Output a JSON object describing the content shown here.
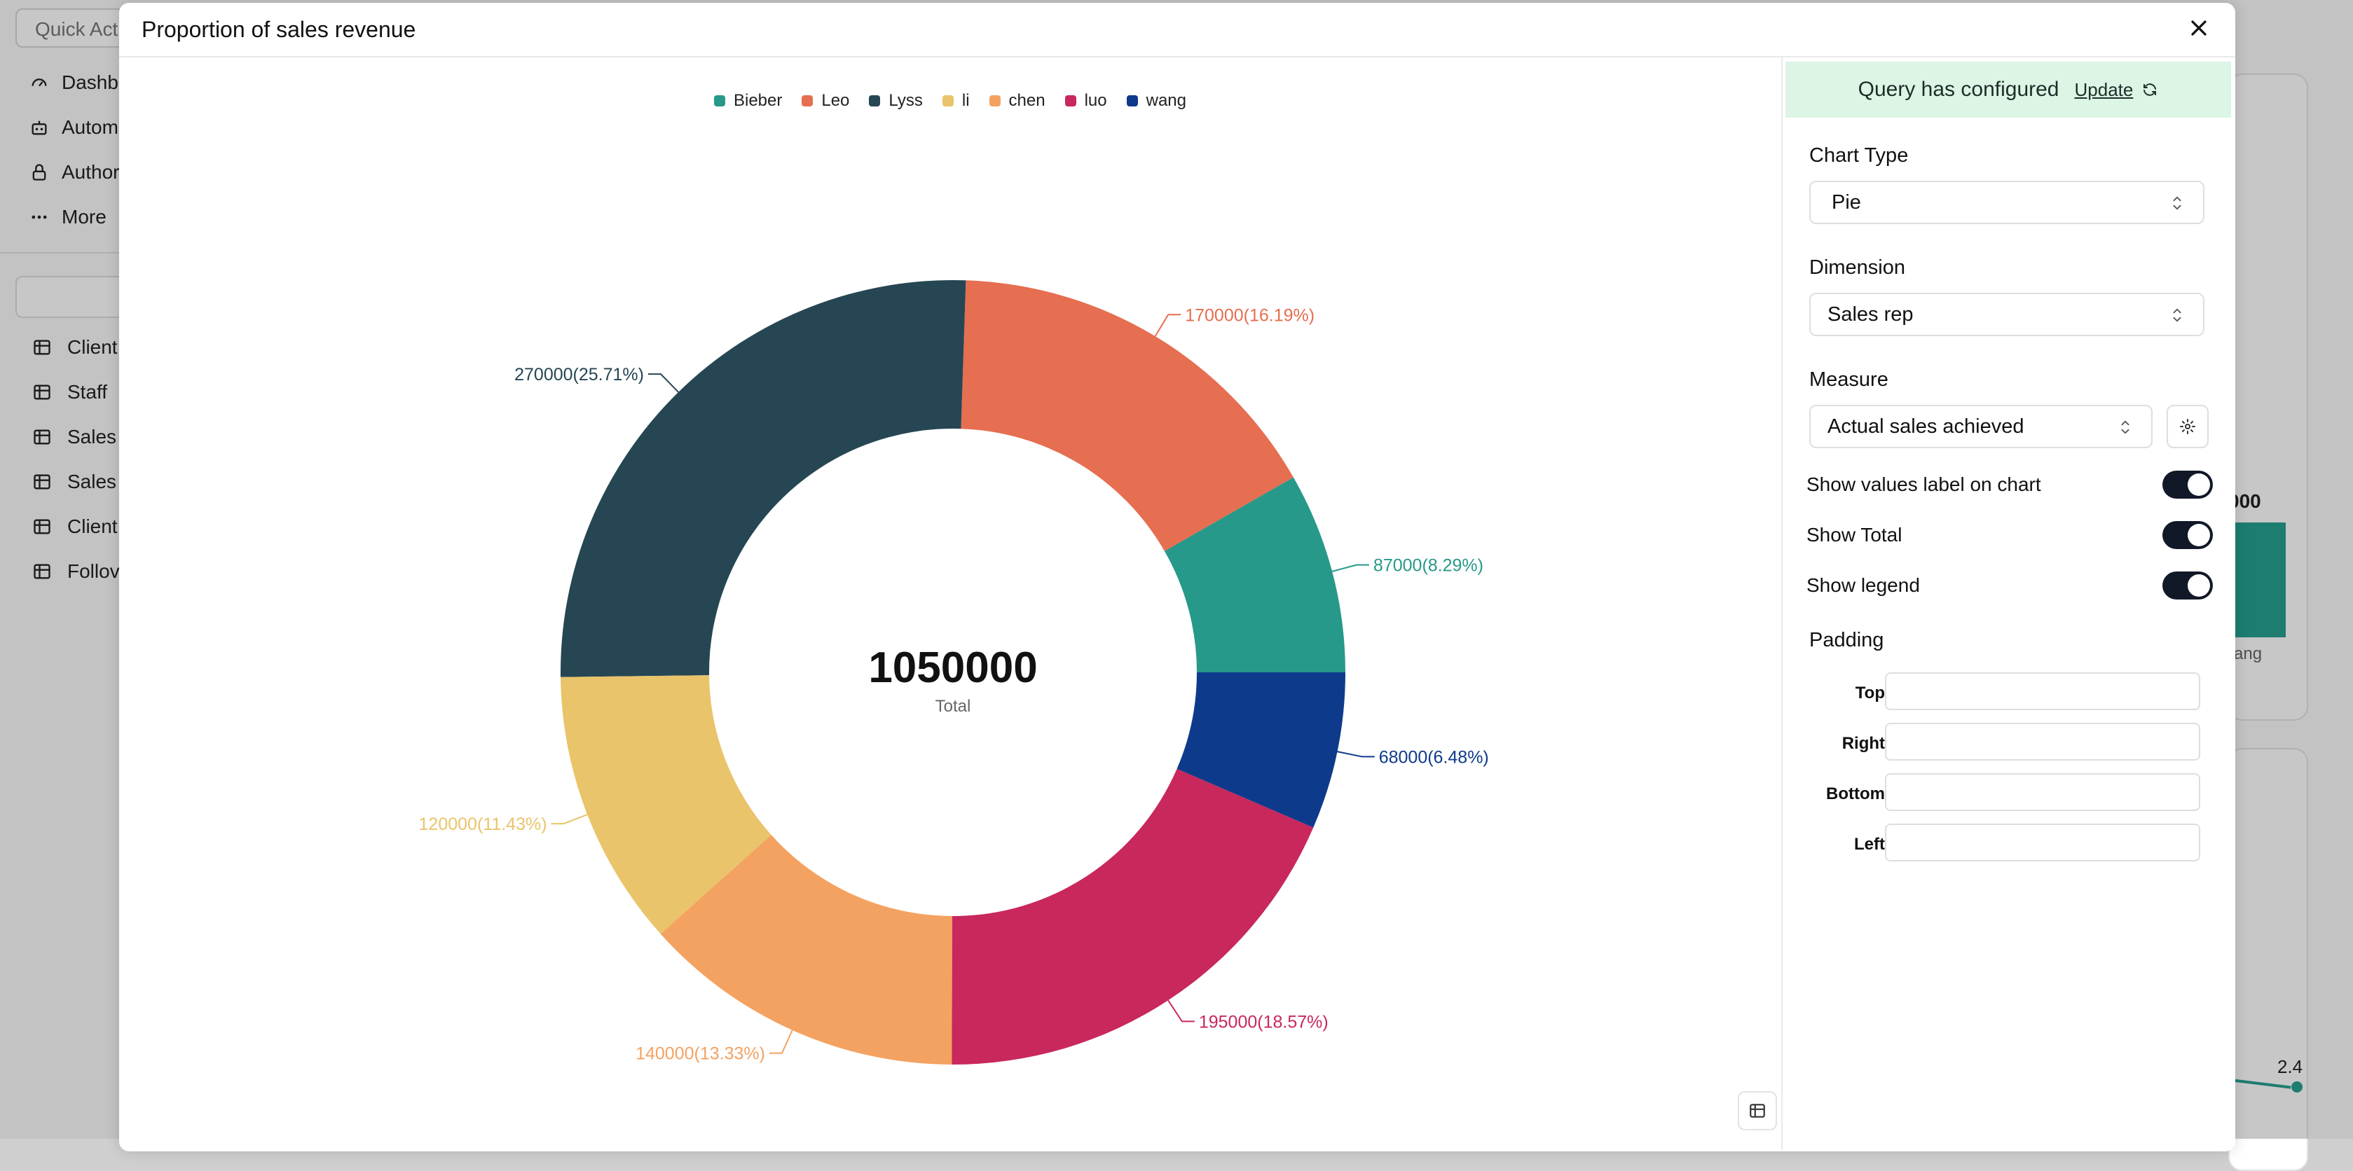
{
  "background": {
    "quick_action_placeholder": "Quick Act",
    "nav": [
      {
        "label": "Dashb",
        "icon": "gauge-icon"
      },
      {
        "label": "Autom",
        "icon": "robot-icon"
      },
      {
        "label": "Author",
        "icon": "lock-icon"
      },
      {
        "label": "More",
        "icon": "ellipsis-icon"
      }
    ],
    "tables": [
      "Client",
      "Staff",
      "Sales",
      "Sales",
      "Client",
      "Follov"
    ],
    "bar_value_label": "000",
    "bar_x_label": "ang",
    "line_value_label": "2.4"
  },
  "modal": {
    "title": "Proportion of sales revenue",
    "close_icon": "close-icon"
  },
  "chart_data": {
    "type": "pie",
    "donut": true,
    "legend_position": "top-center",
    "center_value": "1050000",
    "center_label": "Total",
    "slices": [
      {
        "name": "Bieber",
        "value": 87000,
        "label": "87000(8.29%)",
        "color": "#27998a"
      },
      {
        "name": "Leo",
        "value": 170000,
        "label": "170000(16.19%)",
        "color": "#e66e51"
      },
      {
        "name": "Lyss",
        "value": 270000,
        "label": "270000(25.71%)",
        "color": "#264653"
      },
      {
        "name": "li",
        "value": 120000,
        "label": "120000(11.43%)",
        "color": "#e9c46a"
      },
      {
        "name": "chen",
        "value": 140000,
        "label": "140000(13.33%)",
        "color": "#f4a261"
      },
      {
        "name": "luo",
        "value": 195000,
        "label": "195000(18.57%)",
        "color": "#c8285c"
      },
      {
        "name": "wang",
        "value": 68000,
        "label": "68000(6.48%)",
        "color": "#0e3a8c"
      }
    ]
  },
  "panel": {
    "notice_text": "Query has configured",
    "update_label": "Update",
    "chart_type_label": "Chart Type",
    "chart_type_value": "Pie",
    "dimension_label": "Dimension",
    "dimension_value": "Sales rep",
    "measure_label": "Measure",
    "measure_value": "Actual sales achieved",
    "toggles": [
      {
        "label": "Show values label on chart",
        "on": true
      },
      {
        "label": "Show Total",
        "on": true
      },
      {
        "label": "Show legend",
        "on": true
      }
    ],
    "padding_label": "Padding",
    "padding_fields": [
      "Top",
      "Right",
      "Bottom",
      "Left"
    ]
  }
}
